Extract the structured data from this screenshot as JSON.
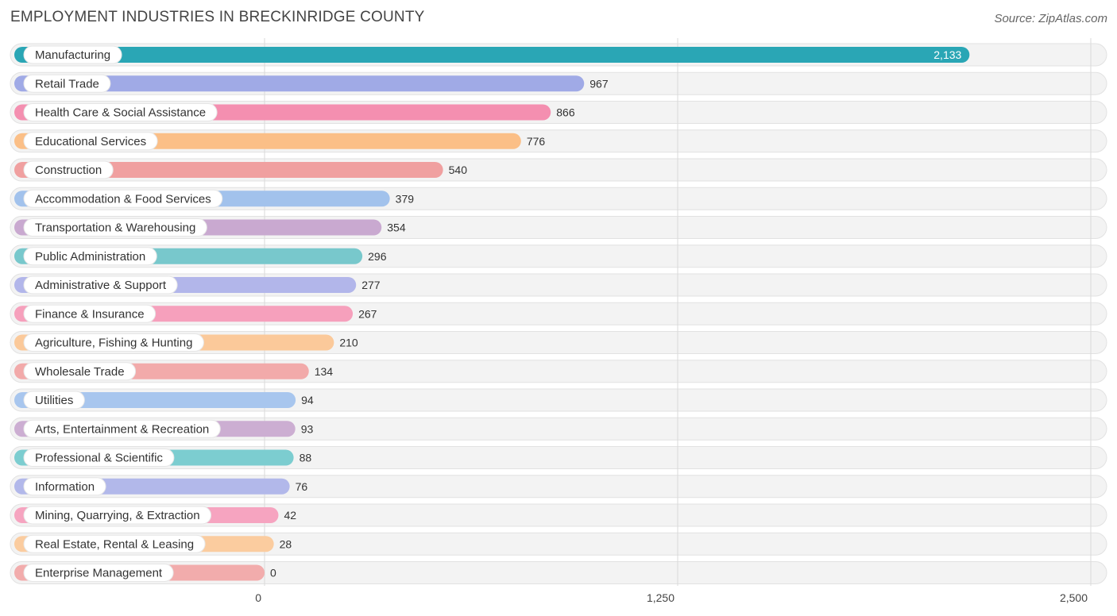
{
  "header": {
    "title": "EMPLOYMENT INDUSTRIES IN BRECKINRIDGE COUNTY",
    "source": "Source: ZipAtlas.com"
  },
  "chart_data": {
    "type": "bar",
    "orientation": "horizontal",
    "title": "EMPLOYMENT INDUSTRIES IN BRECKINRIDGE COUNTY",
    "xlim": [
      0,
      2500
    ],
    "xticks": [
      0,
      1250,
      2500
    ],
    "xtick_labels": [
      "0",
      "1,250",
      "2,500"
    ],
    "grid": true,
    "categories": [
      "Manufacturing",
      "Retail Trade",
      "Health Care & Social Assistance",
      "Educational Services",
      "Construction",
      "Accommodation & Food Services",
      "Transportation & Warehousing",
      "Public Administration",
      "Administrative & Support",
      "Finance & Insurance",
      "Agriculture, Fishing & Hunting",
      "Wholesale Trade",
      "Utilities",
      "Arts, Entertainment & Recreation",
      "Professional & Scientific",
      "Information",
      "Mining, Quarrying, & Extraction",
      "Real Estate, Rental & Leasing",
      "Enterprise Management"
    ],
    "values": [
      2133,
      967,
      866,
      776,
      540,
      379,
      354,
      296,
      277,
      267,
      210,
      134,
      94,
      93,
      88,
      76,
      42,
      28,
      0
    ],
    "value_labels": [
      "2,133",
      "967",
      "866",
      "776",
      "540",
      "379",
      "354",
      "296",
      "277",
      "267",
      "210",
      "134",
      "94",
      "93",
      "88",
      "76",
      "42",
      "28",
      "0"
    ],
    "colors": [
      "#2aa6b5",
      "#a0aae6",
      "#f48fb0",
      "#fbbf87",
      "#f0a0a0",
      "#a2c2ec",
      "#c9a9d0",
      "#78c8cc",
      "#b2b6ea",
      "#f6a0bc",
      "#fbc99a",
      "#f2aaaa",
      "#a8c6ee",
      "#ccaed2",
      "#7ccdd0",
      "#b2b8ea",
      "#f6a4c0",
      "#fbcc9f",
      "#f2acac"
    ]
  }
}
